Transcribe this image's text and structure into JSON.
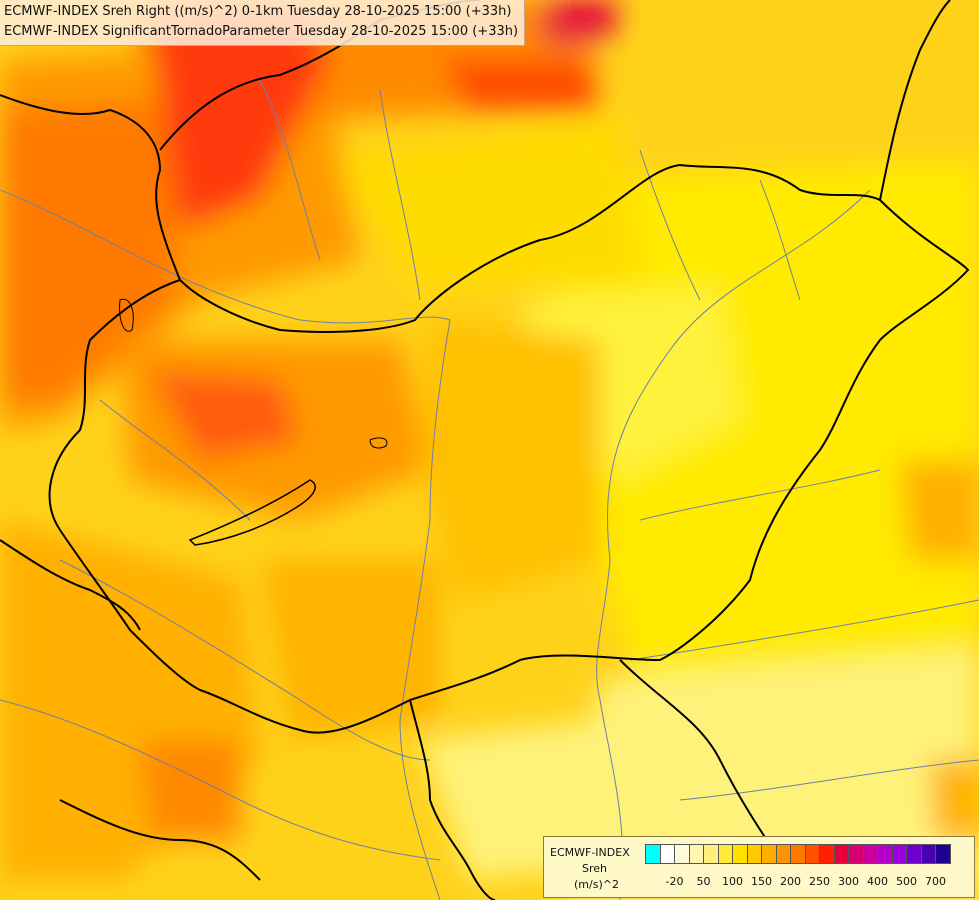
{
  "titles": {
    "line1": "ECMWF-INDEX Sreh Right ((m/s)^2) 0-1km Tuesday 28-10-2025 15:00 (+33h)",
    "line2": "ECMWF-INDEX SignificantTornadoParameter Tuesday 28-10-2025 15:00 (+33h)"
  },
  "legend": {
    "product": "ECMWF-INDEX",
    "parameter": "Sreh",
    "unit": "(m/s)^2",
    "colors": [
      "#00ffff",
      "#ffffff",
      "#fffbd8",
      "#fff6b0",
      "#fff07e",
      "#ffea3c",
      "#ffe000",
      "#ffc800",
      "#ffae00",
      "#ff9400",
      "#ff7800",
      "#ff5000",
      "#ff2000",
      "#e8003c",
      "#d80070",
      "#c8009c",
      "#b400c8",
      "#9c00e0",
      "#7000d0",
      "#4800b0",
      "#200090"
    ],
    "tick_labels": [
      "-20",
      "50",
      "100",
      "150",
      "200",
      "250",
      "300",
      "400",
      "500",
      "700"
    ]
  },
  "map": {
    "region": "Hungary and surroundings",
    "field_colors": {
      "light_yellow": "#fff27a",
      "yellow": "#ffe600",
      "gold": "#ffd000",
      "amber": "#ffb400",
      "orange": "#ff9400",
      "dark_orange": "#ff6e00",
      "red": "#ff3a10",
      "crimson": "#e40040"
    },
    "border_color": "#000000",
    "river_color": "#6f7fa8"
  }
}
